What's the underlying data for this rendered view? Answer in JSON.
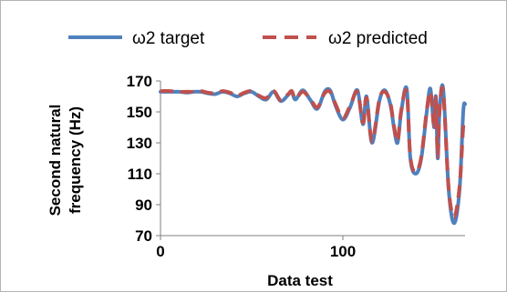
{
  "chart_data": {
    "type": "line",
    "xlabel": "Data test",
    "ylabel": [
      "Second natural",
      "frequency (Hz)"
    ],
    "xlim": [
      0,
      160
    ],
    "ylim": [
      70,
      170
    ],
    "xticks": [
      0,
      100
    ],
    "yticks": [
      70,
      90,
      110,
      130,
      150,
      170
    ],
    "grid": false,
    "legend_position": "top",
    "series": [
      {
        "name": "ω2 target",
        "color": "#4f81bd",
        "style": "solid",
        "points": [
          [
            0,
            163
          ],
          [
            5,
            163
          ],
          [
            10,
            163
          ],
          [
            15,
            162.5
          ],
          [
            18,
            163
          ],
          [
            22,
            163
          ],
          [
            26,
            162
          ],
          [
            30,
            161.5
          ],
          [
            34,
            163
          ],
          [
            38,
            162
          ],
          [
            42,
            160
          ],
          [
            46,
            162
          ],
          [
            50,
            163
          ],
          [
            54,
            160
          ],
          [
            58,
            158
          ],
          [
            62,
            163
          ],
          [
            66,
            157
          ],
          [
            70,
            161
          ],
          [
            72,
            163
          ],
          [
            74,
            158
          ],
          [
            78,
            164
          ],
          [
            82,
            158
          ],
          [
            86,
            152
          ],
          [
            90,
            163
          ],
          [
            93,
            164
          ],
          [
            96,
            154
          ],
          [
            100,
            145
          ],
          [
            104,
            153
          ],
          [
            108,
            164
          ],
          [
            111,
            142
          ],
          [
            113,
            160
          ],
          [
            116,
            130
          ],
          [
            120,
            157
          ],
          [
            123,
            164
          ],
          [
            126,
            155
          ],
          [
            128,
            140
          ],
          [
            130,
            130
          ],
          [
            132,
            150
          ],
          [
            135,
            165
          ],
          [
            137,
            120
          ],
          [
            140,
            110
          ],
          [
            143,
            120
          ],
          [
            146,
            150
          ],
          [
            148,
            165
          ],
          [
            150,
            140
          ],
          [
            151,
            160
          ],
          [
            152,
            120
          ],
          [
            153,
            150
          ],
          [
            155,
            165
          ],
          [
            158,
            100
          ],
          [
            161,
            78
          ],
          [
            164,
            100
          ],
          [
            166,
            150
          ],
          [
            167,
            155
          ]
        ]
      },
      {
        "name": "ω2 predicted",
        "color": "#c0504d",
        "style": "dashed",
        "points": [
          [
            0,
            163.5
          ],
          [
            5,
            163.5
          ],
          [
            10,
            163
          ],
          [
            15,
            163
          ],
          [
            18,
            163
          ],
          [
            22,
            163.5
          ],
          [
            26,
            162.5
          ],
          [
            30,
            162
          ],
          [
            34,
            163.5
          ],
          [
            38,
            162.5
          ],
          [
            42,
            160.5
          ],
          [
            46,
            162.5
          ],
          [
            50,
            163.5
          ],
          [
            54,
            160.5
          ],
          [
            58,
            159
          ],
          [
            62,
            163.5
          ],
          [
            66,
            157.5
          ],
          [
            70,
            161.5
          ],
          [
            72,
            163.5
          ],
          [
            74,
            158.5
          ],
          [
            78,
            163
          ],
          [
            82,
            158.5
          ],
          [
            86,
            153
          ],
          [
            90,
            162
          ],
          [
            93,
            163
          ],
          [
            96,
            155
          ],
          [
            100,
            146
          ],
          [
            104,
            154
          ],
          [
            108,
            163
          ],
          [
            111,
            143
          ],
          [
            113,
            159
          ],
          [
            116,
            131
          ],
          [
            120,
            158
          ],
          [
            123,
            163
          ],
          [
            126,
            156
          ],
          [
            128,
            141
          ],
          [
            130,
            131
          ],
          [
            132,
            151
          ],
          [
            135,
            163
          ],
          [
            137,
            121
          ],
          [
            140,
            111
          ],
          [
            143,
            121
          ],
          [
            146,
            151
          ],
          [
            148,
            163
          ],
          [
            150,
            141
          ],
          [
            151,
            159
          ],
          [
            152,
            121
          ],
          [
            153,
            151
          ],
          [
            155,
            163
          ],
          [
            158,
            101
          ],
          [
            161,
            82
          ],
          [
            164,
            102
          ],
          [
            166,
            140
          ],
          [
            167,
            145
          ]
        ]
      }
    ]
  }
}
